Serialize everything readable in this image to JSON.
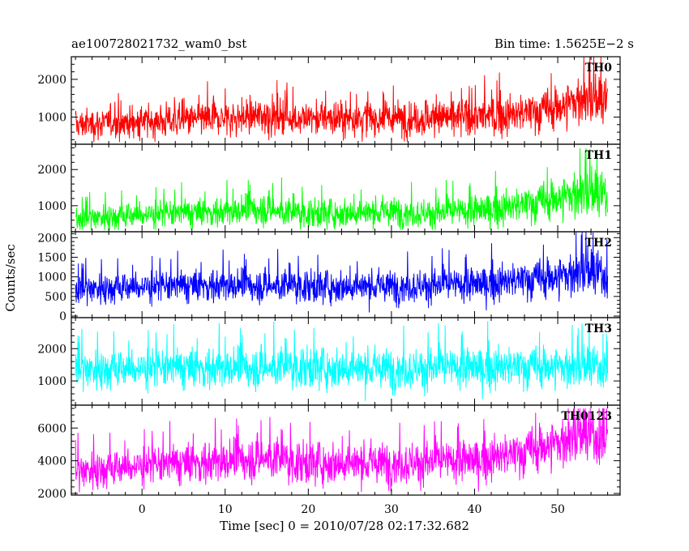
{
  "header": {
    "title": "ae100728021732_wam0_bst",
    "bin_time": "Bin time: 1.5625E−2 s"
  },
  "ylabel": "Counts/sec",
  "xlabel": "Time [sec] 0 = 2010/07/28 02:17:32.682",
  "chart_data": {
    "type": "line",
    "title": "ae100728021732_wam0_bst",
    "xlabel": "Time [sec] 0 = 2010/07/28 02:17:32.682",
    "ylabel": "Counts/sec",
    "xlim": [
      -8.5,
      57.5
    ],
    "x_range": [
      -8,
      56
    ],
    "x_ticks": [
      0,
      10,
      20,
      30,
      40,
      50
    ],
    "bin_time_s": 0.015625,
    "panels": [
      {
        "name": "TH0",
        "color": "#ff0000",
        "ylim": [
          280,
          2600
        ],
        "yticks": [
          1000,
          2000
        ],
        "profile": [
          [
            -8,
            800,
            200,
            2000
          ],
          [
            0,
            880,
            220,
            2100
          ],
          [
            10,
            960,
            230,
            2200
          ],
          [
            15,
            1060,
            260,
            2400
          ],
          [
            18,
            970,
            240,
            2200
          ],
          [
            30,
            960,
            240,
            2200
          ],
          [
            40,
            1010,
            250,
            2300
          ],
          [
            45,
            1060,
            260,
            2350
          ],
          [
            50,
            1250,
            300,
            2600
          ],
          [
            53,
            1500,
            350,
            2600
          ],
          [
            56,
            1350,
            330,
            2600
          ]
        ]
      },
      {
        "name": "TH1",
        "color": "#00ff00",
        "ylim": [
          280,
          2700
        ],
        "yticks": [
          1000,
          2000
        ],
        "profile": [
          [
            -8,
            650,
            180,
            1500
          ],
          [
            0,
            760,
            200,
            1700
          ],
          [
            10,
            830,
            200,
            1800
          ],
          [
            15,
            920,
            230,
            1900
          ],
          [
            18,
            780,
            200,
            1700
          ],
          [
            30,
            830,
            210,
            2300
          ],
          [
            35,
            790,
            200,
            1800
          ],
          [
            40,
            850,
            220,
            1900
          ],
          [
            45,
            980,
            250,
            2200
          ],
          [
            50,
            1200,
            300,
            2500
          ],
          [
            53,
            1400,
            380,
            2600
          ],
          [
            56,
            1200,
            330,
            2500
          ]
        ]
      },
      {
        "name": "TH2",
        "color": "#0000ff",
        "ylim": [
          -40,
          2150
        ],
        "yticks": [
          0,
          500,
          1000,
          1500,
          2000
        ],
        "profile": [
          [
            -8,
            700,
            200,
            1800
          ],
          [
            0,
            750,
            210,
            1850
          ],
          [
            10,
            780,
            210,
            1900
          ],
          [
            20,
            760,
            210,
            1900
          ],
          [
            30,
            760,
            210,
            1900
          ],
          [
            40,
            800,
            220,
            1950
          ],
          [
            45,
            900,
            240,
            2000
          ],
          [
            50,
            1000,
            280,
            2100
          ],
          [
            53,
            1150,
            320,
            2150
          ],
          [
            56,
            1000,
            300,
            2100
          ]
        ]
      },
      {
        "name": "TH3",
        "color": "#00ffff",
        "ylim": [
          250,
          2960
        ],
        "yticks": [
          1000,
          2000
        ],
        "profile": [
          [
            -8,
            1380,
            320,
            2900
          ],
          [
            10,
            1400,
            320,
            2900
          ],
          [
            20,
            1420,
            320,
            2900
          ],
          [
            30,
            1380,
            320,
            2900
          ],
          [
            40,
            1400,
            320,
            2900
          ],
          [
            50,
            1450,
            340,
            2950
          ],
          [
            56,
            1400,
            330,
            2900
          ]
        ]
      },
      {
        "name": "TH0123",
        "color": "#ff00ff",
        "ylim": [
          1900,
          7400
        ],
        "yticks": [
          2000,
          4000,
          6000
        ],
        "profile": [
          [
            -8,
            3400,
            600,
            6000
          ],
          [
            0,
            3700,
            600,
            6700
          ],
          [
            10,
            3950,
            650,
            6600
          ],
          [
            15,
            4200,
            700,
            6700
          ],
          [
            18,
            3900,
            650,
            6500
          ],
          [
            30,
            3850,
            650,
            6300
          ],
          [
            40,
            4000,
            650,
            6500
          ],
          [
            45,
            4400,
            700,
            6700
          ],
          [
            50,
            5100,
            800,
            7200
          ],
          [
            53,
            5600,
            900,
            7200
          ],
          [
            56,
            5200,
            850,
            7200
          ]
        ]
      }
    ]
  }
}
